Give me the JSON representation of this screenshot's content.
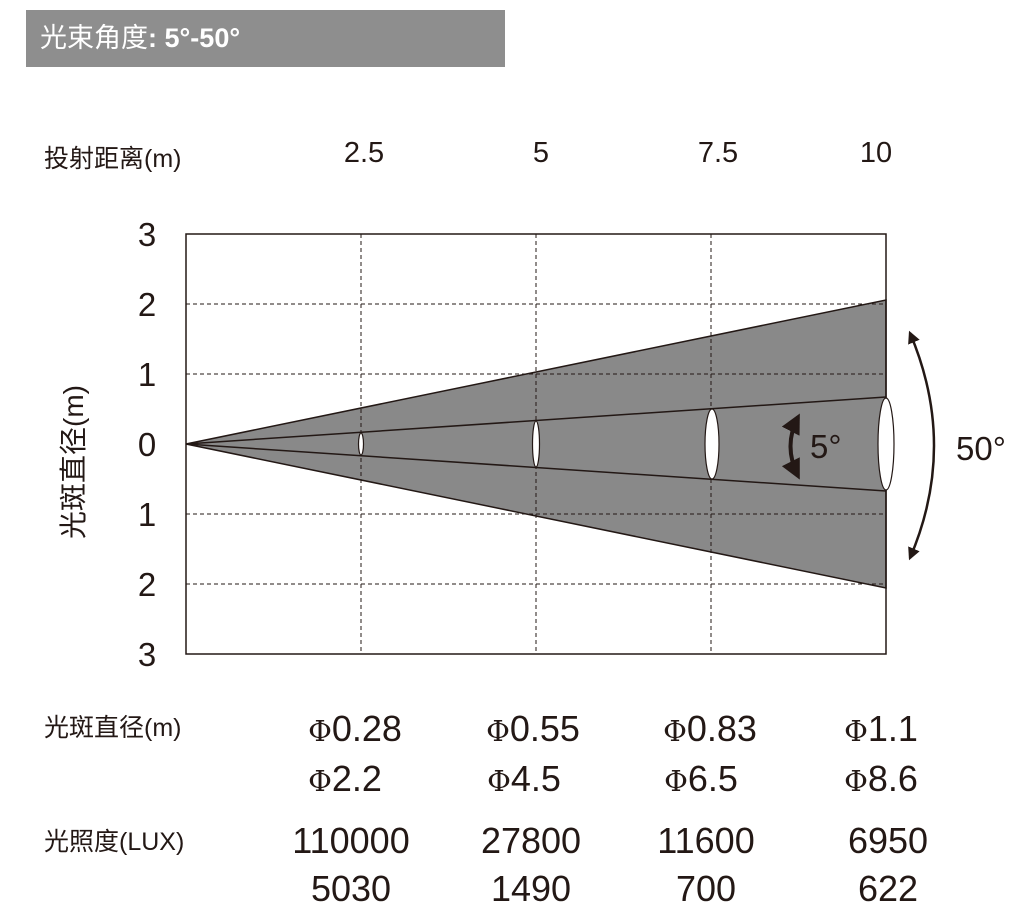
{
  "title": {
    "label": "光束角度",
    "value": ": 5°-50°"
  },
  "distance": {
    "label": "投射距离(m)",
    "values": [
      "2.5",
      "5",
      "7.5",
      "10"
    ]
  },
  "y_axis": {
    "label": "光斑直径(m)",
    "ticks": [
      "3",
      "2",
      "1",
      "0",
      "1",
      "2",
      "3"
    ]
  },
  "beam": {
    "narrow_angle": "5°",
    "wide_angle": "50°"
  },
  "spot_diameter": {
    "label": "光斑直径(m)",
    "symbol": "Φ",
    "narrow": [
      "0.28",
      "0.55",
      "0.83",
      "1.1"
    ],
    "wide": [
      "2.2",
      "4.5",
      "6.5",
      "8.6"
    ]
  },
  "illuminance": {
    "label": "光照度(LUX)",
    "narrow": [
      "110000",
      "27800",
      "11600",
      "6950"
    ],
    "wide": [
      "5030",
      "1490",
      "700",
      "622"
    ]
  },
  "colors": {
    "title_bg": "#8e8e8e",
    "beam_fill": "#898989",
    "line": "#231815"
  }
}
